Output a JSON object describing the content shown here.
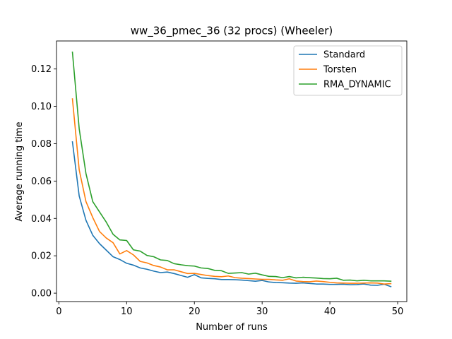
{
  "chart_data": {
    "type": "line",
    "title": "ww_36_pmec_36 (32 procs) (Wheeler)",
    "xlabel": "Number of runs",
    "ylabel": "Average running time",
    "xlim": [
      -0.35,
      51.35
    ],
    "ylim": [
      -0.0045,
      0.135
    ],
    "xticks": [
      0,
      10,
      20,
      30,
      40,
      50
    ],
    "xtick_labels": [
      "0",
      "10",
      "20",
      "30",
      "40",
      "50"
    ],
    "yticks": [
      0.0,
      0.02,
      0.04,
      0.06,
      0.08,
      0.1,
      0.12
    ],
    "ytick_labels": [
      "0.00",
      "0.02",
      "0.04",
      "0.06",
      "0.08",
      "0.10",
      "0.12"
    ],
    "grid": false,
    "legend_position": "top-right",
    "x": [
      2,
      3,
      4,
      5,
      6,
      7,
      8,
      9,
      10,
      11,
      12,
      13,
      14,
      15,
      16,
      17,
      18,
      19,
      20,
      21,
      22,
      23,
      24,
      25,
      26,
      27,
      28,
      29,
      30,
      31,
      32,
      33,
      34,
      35,
      36,
      37,
      38,
      39,
      40,
      41,
      42,
      43,
      44,
      45,
      46,
      47,
      48,
      49
    ],
    "series": [
      {
        "name": "Standard",
        "color": "#1f77b4",
        "values": [
          0.081,
          0.052,
          0.039,
          0.031,
          0.0265,
          0.023,
          0.0195,
          0.018,
          0.016,
          0.015,
          0.0135,
          0.0128,
          0.0118,
          0.011,
          0.0113,
          0.0105,
          0.0095,
          0.0085,
          0.0099,
          0.0082,
          0.0079,
          0.0077,
          0.0073,
          0.0073,
          0.0072,
          0.007,
          0.0067,
          0.0064,
          0.0068,
          0.006,
          0.0057,
          0.0056,
          0.0054,
          0.0053,
          0.0055,
          0.0052,
          0.0049,
          0.0049,
          0.0047,
          0.0047,
          0.0048,
          0.0045,
          0.0046,
          0.0049,
          0.0043,
          0.0042,
          0.0048,
          0.0035
        ]
      },
      {
        "name": "Torsten",
        "color": "#ff7f0e",
        "values": [
          0.104,
          0.066,
          0.049,
          0.0405,
          0.033,
          0.0295,
          0.027,
          0.021,
          0.0228,
          0.0205,
          0.017,
          0.0162,
          0.0148,
          0.014,
          0.0125,
          0.0125,
          0.0115,
          0.0105,
          0.0106,
          0.01,
          0.0094,
          0.009,
          0.0088,
          0.0092,
          0.0083,
          0.008,
          0.0078,
          0.0076,
          0.0074,
          0.0074,
          0.0071,
          0.0069,
          0.0077,
          0.0065,
          0.0062,
          0.0061,
          0.0065,
          0.0062,
          0.0058,
          0.0055,
          0.0054,
          0.0053,
          0.0053,
          0.0054,
          0.0055,
          0.0054,
          0.0049,
          0.0051
        ]
      },
      {
        "name": "RMA_DYNAMIC",
        "color": "#2ca02c",
        "values": [
          0.129,
          0.088,
          0.064,
          0.049,
          0.0435,
          0.038,
          0.0315,
          0.0285,
          0.0282,
          0.0232,
          0.0225,
          0.0202,
          0.0195,
          0.0178,
          0.0175,
          0.0158,
          0.0152,
          0.0147,
          0.0145,
          0.0135,
          0.0132,
          0.0122,
          0.012,
          0.0106,
          0.0108,
          0.011,
          0.0102,
          0.0107,
          0.0098,
          0.009,
          0.0089,
          0.0083,
          0.0089,
          0.0082,
          0.0085,
          0.0083,
          0.0081,
          0.0078,
          0.0077,
          0.008,
          0.0069,
          0.007,
          0.0066,
          0.0069,
          0.0066,
          0.0066,
          0.0066,
          0.0064
        ]
      }
    ]
  }
}
